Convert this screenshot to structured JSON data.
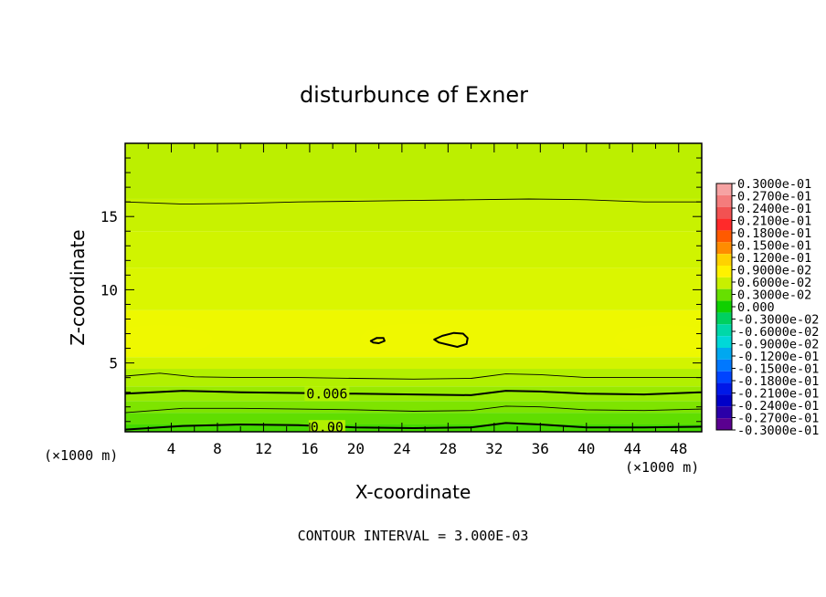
{
  "chart_data": {
    "type": "heatmap",
    "title": "disturbunce of Exner",
    "xlabel": "X-coordinate",
    "ylabel": "Z-coordinate",
    "x_unit": "(×1000 m)",
    "y_unit": "(×1000 m)",
    "xlim": [
      0,
      50
    ],
    "ylim": [
      0.3,
      20
    ],
    "x_ticks": [
      "4",
      "8",
      "12",
      "16",
      "20",
      "24",
      "28",
      "32",
      "36",
      "40",
      "44",
      "48"
    ],
    "y_ticks": [
      "5",
      "10",
      "15"
    ],
    "footer": "CONTOUR INTERVAL = 3.000E-03",
    "contour_interval": 0.003,
    "contour_labels": [
      {
        "text": "0.006",
        "x": 17.5,
        "y": 2.9
      },
      {
        "text": "0.00",
        "x": 17.5,
        "y": 0.6
      }
    ],
    "colorbar": {
      "labels": [
        "0.3000e-01",
        "0.2700e-01",
        "0.2400e-01",
        "0.2100e-01",
        "0.1800e-01",
        "0.1500e-01",
        "0.1200e-01",
        "0.9000e-02",
        "0.6000e-02",
        "0.3000e-02",
        "0.000",
        "-0.3000e-02",
        "-0.6000e-02",
        "-0.9000e-02",
        "-0.1200e-01",
        "-0.1500e-01",
        "-0.1800e-01",
        "-0.2100e-01",
        "-0.2400e-01",
        "-0.2700e-01",
        "-0.3000e-01"
      ],
      "colors": [
        "#f6a2a2",
        "#f47c7c",
        "#f25252",
        "#ff2a2a",
        "#ff5a00",
        "#ff8c00",
        "#ffd200",
        "#fff200",
        "#c8f000",
        "#66e000",
        "#10d000",
        "#00d060",
        "#00d8a8",
        "#00d8d8",
        "#00a8f0",
        "#0078ff",
        "#0044ff",
        "#0018e8",
        "#0000c8",
        "#2a00a8",
        "#5a0090"
      ]
    },
    "field_bands": [
      {
        "z_from": 0.3,
        "z_to": 0.8,
        "color": "#43d800"
      },
      {
        "z_from": 0.8,
        "z_to": 1.6,
        "color": "#60de00"
      },
      {
        "z_from": 1.6,
        "z_to": 2.4,
        "color": "#7ee400"
      },
      {
        "z_from": 2.4,
        "z_to": 3.4,
        "color": "#98ea00"
      },
      {
        "z_from": 3.4,
        "z_to": 4.6,
        "color": "#b2f000"
      },
      {
        "z_from": 4.6,
        "z_to": 5.4,
        "color": "#d2f400"
      },
      {
        "z_from": 5.4,
        "z_to": 8.6,
        "color": "#eef800"
      },
      {
        "z_from": 8.6,
        "z_to": 11.5,
        "color": "#daf600"
      },
      {
        "z_from": 11.5,
        "z_to": 14.0,
        "color": "#d0f400"
      },
      {
        "z_from": 14.0,
        "z_to": 16.2,
        "color": "#c8f200"
      },
      {
        "z_from": 16.2,
        "z_to": 20.0,
        "color": "#bcef00"
      }
    ],
    "contours": [
      {
        "level": 0.0,
        "style": "thick",
        "points": [
          [
            0,
            0.45
          ],
          [
            5,
            0.7
          ],
          [
            10,
            0.8
          ],
          [
            15,
            0.75
          ],
          [
            20,
            0.6
          ],
          [
            25,
            0.55
          ],
          [
            30,
            0.6
          ],
          [
            33,
            0.9
          ],
          [
            36,
            0.8
          ],
          [
            40,
            0.6
          ],
          [
            45,
            0.6
          ],
          [
            50,
            0.65
          ]
        ]
      },
      {
        "level": 0.003,
        "style": "thin",
        "points": [
          [
            0,
            1.6
          ],
          [
            5,
            1.9
          ],
          [
            10,
            1.9
          ],
          [
            15,
            1.85
          ],
          [
            20,
            1.8
          ],
          [
            25,
            1.7
          ],
          [
            30,
            1.75
          ],
          [
            33,
            2.05
          ],
          [
            36,
            2.0
          ],
          [
            40,
            1.8
          ],
          [
            45,
            1.75
          ],
          [
            50,
            1.85
          ]
        ]
      },
      {
        "level": 0.006,
        "style": "thick",
        "points": [
          [
            0,
            2.9
          ],
          [
            5,
            3.1
          ],
          [
            10,
            3.0
          ],
          [
            15,
            2.95
          ],
          [
            20,
            2.9
          ],
          [
            25,
            2.85
          ],
          [
            30,
            2.8
          ],
          [
            33,
            3.1
          ],
          [
            36,
            3.05
          ],
          [
            40,
            2.9
          ],
          [
            45,
            2.85
          ],
          [
            50,
            3.0
          ]
        ]
      },
      {
        "level": 0.009,
        "style": "thin",
        "points": [
          [
            0,
            4.1
          ],
          [
            3,
            4.3
          ],
          [
            6,
            4.05
          ],
          [
            10,
            4.0
          ],
          [
            15,
            4.0
          ],
          [
            20,
            3.95
          ],
          [
            25,
            3.9
          ],
          [
            30,
            3.95
          ],
          [
            33,
            4.25
          ],
          [
            36,
            4.2
          ],
          [
            40,
            4.0
          ],
          [
            45,
            4.0
          ],
          [
            50,
            4.0
          ]
        ]
      },
      {
        "level": 0.009,
        "style": "thin",
        "points": [
          [
            0,
            16.0
          ],
          [
            5,
            15.85
          ],
          [
            10,
            15.9
          ],
          [
            15,
            16.0
          ],
          [
            20,
            16.05
          ],
          [
            25,
            16.1
          ],
          [
            30,
            16.15
          ],
          [
            35,
            16.2
          ],
          [
            40,
            16.15
          ],
          [
            45,
            16.0
          ],
          [
            50,
            16.0
          ]
        ]
      }
    ],
    "closed_contours": [
      {
        "level": 0.012,
        "points": [
          [
            21.3,
            6.5
          ],
          [
            21.8,
            6.7
          ],
          [
            22.4,
            6.7
          ],
          [
            22.5,
            6.5
          ],
          [
            22.0,
            6.35
          ],
          [
            21.5,
            6.4
          ]
        ]
      },
      {
        "level": 0.012,
        "points": [
          [
            26.8,
            6.6
          ],
          [
            27.5,
            6.85
          ],
          [
            28.5,
            7.05
          ],
          [
            29.3,
            7.0
          ],
          [
            29.7,
            6.7
          ],
          [
            29.6,
            6.3
          ],
          [
            28.8,
            6.1
          ],
          [
            28.0,
            6.25
          ],
          [
            27.2,
            6.4
          ]
        ]
      }
    ],
    "grid": false
  }
}
